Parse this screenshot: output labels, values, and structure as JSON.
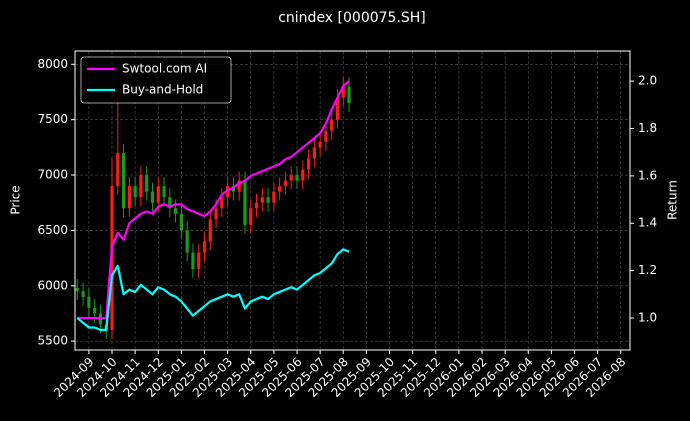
{
  "chart_data": {
    "type": "candlestick",
    "title": "cnindex [000075.SH]",
    "ylabel": "Price",
    "y2label": "Return",
    "x": [
      -0.5,
      -0.25,
      0,
      0.25,
      0.5,
      0.75,
      1,
      1.25,
      1.5,
      1.75,
      2,
      2.25,
      2.5,
      2.75,
      3,
      3.25,
      3.5,
      3.75,
      4,
      4.25,
      4.5,
      4.75,
      5,
      5.25,
      5.5,
      5.75,
      6,
      6.25,
      6.5,
      6.75,
      7,
      7.25,
      7.5,
      7.75,
      8,
      8.25,
      8.5,
      8.75,
      9,
      9.25,
      9.5,
      9.75,
      10,
      10.25,
      10.5,
      10.75,
      11,
      11.25
    ],
    "open": [
      5980,
      5950,
      5900,
      5800,
      5750,
      5650,
      5600,
      6900,
      7200,
      6700,
      6900,
      6800,
      7000,
      6850,
      6750,
      6900,
      6800,
      6700,
      6650,
      6500,
      6300,
      6150,
      6300,
      6400,
      6600,
      6700,
      6800,
      6900,
      6850,
      6950,
      6550,
      6700,
      6750,
      6800,
      6750,
      6850,
      6900,
      6950,
      7000,
      6950,
      7050,
      7150,
      7250,
      7300,
      7400,
      7500,
      7700,
      7800
    ],
    "high": [
      6060,
      6030,
      5980,
      5880,
      5830,
      5730,
      7150,
      7700,
      7280,
      6980,
      6980,
      7080,
      7080,
      6930,
      6980,
      6980,
      6880,
      6780,
      6730,
      6580,
      6380,
      6380,
      6480,
      6680,
      6780,
      6880,
      6980,
      6980,
      7030,
      7030,
      6780,
      6830,
      6880,
      6880,
      6930,
      6980,
      7030,
      7080,
      7080,
      7130,
      7230,
      7330,
      7380,
      7480,
      7580,
      7780,
      7880,
      7880
    ],
    "low": [
      5870,
      5820,
      5720,
      5670,
      5570,
      5520,
      5520,
      6820,
      6620,
      6620,
      6720,
      6720,
      6770,
      6670,
      6670,
      6720,
      6620,
      6570,
      6420,
      6220,
      6070,
      6070,
      6220,
      6320,
      6520,
      6620,
      6720,
      6770,
      6770,
      6470,
      6470,
      6620,
      6670,
      6670,
      6670,
      6770,
      6820,
      6870,
      6870,
      6870,
      6970,
      7070,
      7170,
      7220,
      7320,
      7420,
      7620,
      7570
    ],
    "close": [
      5950,
      5900,
      5800,
      5750,
      5650,
      5600,
      6900,
      7200,
      6700,
      6900,
      6800,
      7000,
      6850,
      6750,
      6900,
      6800,
      6700,
      6650,
      6500,
      6300,
      6150,
      6300,
      6400,
      6600,
      6700,
      6800,
      6900,
      6850,
      6950,
      6550,
      6700,
      6750,
      6800,
      6750,
      6850,
      6900,
      6950,
      7000,
      6950,
      7050,
      7150,
      7250,
      7300,
      7400,
      7500,
      7700,
      7800,
      7650
    ],
    "up_color": "#ff1a1a",
    "down_color": "#1a9c1a",
    "series": [
      {
        "name": "Swtool.com AI",
        "color": "#ff00ff",
        "axis": "y2",
        "values": [
          1.0,
          1.0,
          1.0,
          1.0,
          1.0,
          1.0,
          1.3,
          1.36,
          1.33,
          1.4,
          1.42,
          1.44,
          1.45,
          1.44,
          1.47,
          1.48,
          1.47,
          1.48,
          1.48,
          1.46,
          1.45,
          1.44,
          1.43,
          1.45,
          1.48,
          1.52,
          1.54,
          1.55,
          1.57,
          1.58,
          1.6,
          1.61,
          1.62,
          1.63,
          1.64,
          1.65,
          1.67,
          1.68,
          1.7,
          1.72,
          1.74,
          1.76,
          1.78,
          1.82,
          1.88,
          1.93,
          1.98,
          2.0
        ]
      },
      {
        "name": "Buy-and-Hold",
        "color": "#00ffff",
        "axis": "y2",
        "values": [
          1.0,
          0.98,
          0.96,
          0.96,
          0.95,
          0.95,
          1.18,
          1.22,
          1.1,
          1.12,
          1.11,
          1.14,
          1.12,
          1.1,
          1.13,
          1.12,
          1.1,
          1.09,
          1.07,
          1.04,
          1.01,
          1.03,
          1.05,
          1.07,
          1.08,
          1.09,
          1.1,
          1.09,
          1.1,
          1.04,
          1.07,
          1.08,
          1.09,
          1.08,
          1.1,
          1.11,
          1.12,
          1.13,
          1.12,
          1.14,
          1.16,
          1.18,
          1.19,
          1.21,
          1.23,
          1.27,
          1.29,
          1.28
        ]
      }
    ],
    "xlim": [
      -0.6,
      23.4
    ],
    "xticks": [
      {
        "value": 0,
        "label": "2024-09"
      },
      {
        "value": 1,
        "label": "2024-10"
      },
      {
        "value": 2,
        "label": "2024-11"
      },
      {
        "value": 3,
        "label": "2024-12"
      },
      {
        "value": 4,
        "label": "2025-01"
      },
      {
        "value": 5,
        "label": "2025-02"
      },
      {
        "value": 6,
        "label": "2025-03"
      },
      {
        "value": 7,
        "label": "2025-04"
      },
      {
        "value": 8,
        "label": "2025-05"
      },
      {
        "value": 9,
        "label": "2025-06"
      },
      {
        "value": 10,
        "label": "2025-07"
      },
      {
        "value": 11,
        "label": "2025-08"
      },
      {
        "value": 12,
        "label": "2025-09"
      },
      {
        "value": 13,
        "label": "2025-10"
      },
      {
        "value": 14,
        "label": "2025-11"
      },
      {
        "value": 15,
        "label": "2025-12"
      },
      {
        "value": 16,
        "label": "2026-01"
      },
      {
        "value": 17,
        "label": "2026-02"
      },
      {
        "value": 18,
        "label": "2026-03"
      },
      {
        "value": 19,
        "label": "2026-04"
      },
      {
        "value": 20,
        "label": "2026-05"
      },
      {
        "value": 21,
        "label": "2026-06"
      },
      {
        "value": 22,
        "label": "2026-07"
      },
      {
        "value": 23,
        "label": "2026-08"
      }
    ],
    "ylim": [
      5420,
      8120
    ],
    "yticks": [
      5500,
      6000,
      6500,
      7000,
      7500,
      8000
    ],
    "y2lim": [
      0.865,
      2.127
    ],
    "y2ticks": [
      {
        "value": 1,
        "label": "1.0"
      },
      {
        "value": 1.2,
        "label": "1.2"
      },
      {
        "value": 1.4,
        "label": "1.4"
      },
      {
        "value": 1.6,
        "label": "1.6"
      },
      {
        "value": 1.8,
        "label": "1.8"
      },
      {
        "value": 2,
        "label": "2.0"
      }
    ],
    "grid": true,
    "legend": "upper left"
  }
}
